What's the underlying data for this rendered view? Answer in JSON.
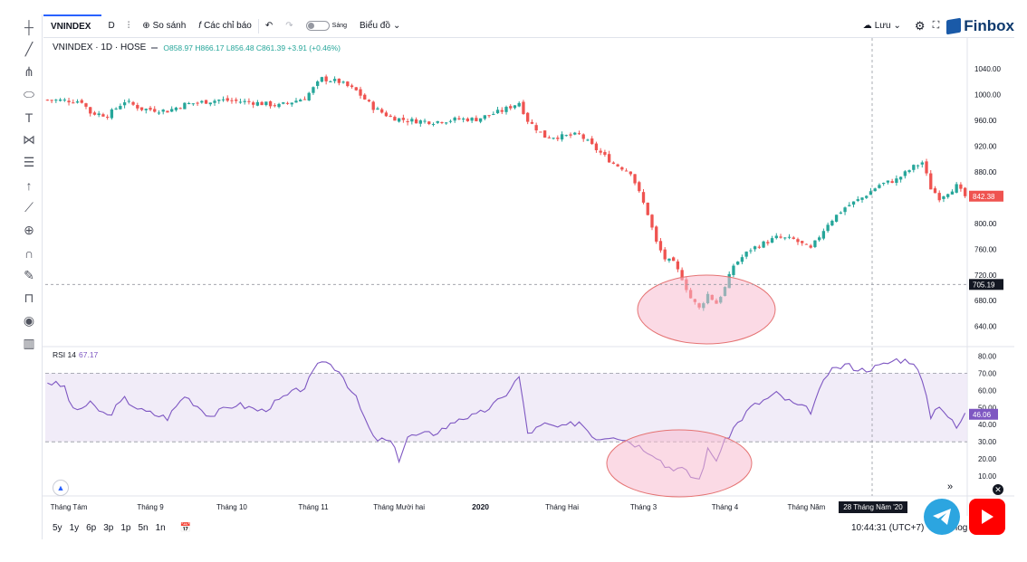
{
  "toolbar": {
    "symbol": "VNINDEX",
    "interval": "D",
    "compare_label": "So sánh",
    "indicators_label": "Các chỉ báo",
    "theme_label": "Sáng",
    "chart_type_label": "Biểu đồ",
    "save_label": "Lưu",
    "brand": "Finbox"
  },
  "legend": {
    "title": "VNINDEX · 1D · HOSE",
    "ohlc": "O858.97 H866.17 L856.48 C861.39 +3.91 (+0.46%)",
    "rsi_label": "RSI 14",
    "rsi_value": "67.17"
  },
  "bottombar": {
    "ranges": [
      "5y",
      "1y",
      "6p",
      "3p",
      "1p",
      "5n",
      "1n"
    ],
    "clock": "10:44:31 (UTC+7)",
    "log_label": "log"
  },
  "colors": {
    "up": "#26a69a",
    "down": "#ef5350",
    "rsi_line": "#7e57c2",
    "rsi_band": "#ede7f6",
    "highlight": "#f8bbd0",
    "highlight_stroke": "#e57373"
  },
  "chart_data": {
    "type": "candlestick",
    "price_axis": {
      "ticks": [
        1040,
        1000,
        960,
        920,
        880,
        840,
        800,
        760,
        720,
        680,
        640
      ],
      "tick_labels": [
        "1040.00",
        "1000.00",
        "960.00",
        "920.00",
        "880.00",
        "840.00",
        "800.00",
        "760.00",
        "720.00",
        "680.00",
        "640.00"
      ],
      "range": [
        610,
        1060
      ],
      "last_price": "842.38",
      "crosshair_price": "705.19"
    },
    "rsi_axis": {
      "ticks": [
        80,
        70,
        60,
        50,
        40,
        30,
        20,
        10
      ],
      "tick_labels": [
        "80.00",
        "70.00",
        "60.00",
        "50.00",
        "40.00",
        "30.00",
        "20.00",
        "10.00"
      ],
      "range": [
        0,
        85
      ],
      "band": [
        30,
        70
      ],
      "last_value": "46.06"
    },
    "time_axis": {
      "labels": [
        "Tháng Tám",
        "Tháng 9",
        "Tháng 10",
        "Tháng 11",
        "Tháng Mười hai",
        "2020",
        "Tháng Hai",
        "Tháng 3",
        "Tháng 4",
        "Tháng Năm"
      ],
      "positions": [
        5,
        24,
        43,
        62,
        82,
        101,
        120,
        139,
        158,
        177
      ],
      "crosshair_label": "28 Tháng Năm '20"
    },
    "bar_count": 215,
    "close_anchors": [
      [
        0,
        992
      ],
      [
        8,
        990
      ],
      [
        10,
        972
      ],
      [
        14,
        968
      ],
      [
        18,
        990
      ],
      [
        22,
        978
      ],
      [
        28,
        975
      ],
      [
        32,
        985
      ],
      [
        40,
        992
      ],
      [
        48,
        988
      ],
      [
        54,
        983
      ],
      [
        60,
        995
      ],
      [
        64,
        1025
      ],
      [
        68,
        1020
      ],
      [
        72,
        1006
      ],
      [
        76,
        980
      ],
      [
        80,
        965
      ],
      [
        84,
        960
      ],
      [
        90,
        958
      ],
      [
        96,
        962
      ],
      [
        100,
        962
      ],
      [
        106,
        975
      ],
      [
        110,
        988
      ],
      [
        112,
        960
      ],
      [
        116,
        935
      ],
      [
        120,
        935
      ],
      [
        124,
        938
      ],
      [
        128,
        915
      ],
      [
        132,
        893
      ],
      [
        136,
        880
      ],
      [
        140,
        815
      ],
      [
        142,
        770
      ],
      [
        144,
        745
      ],
      [
        146,
        738
      ],
      [
        148,
        715
      ],
      [
        150,
        684
      ],
      [
        152,
        668
      ],
      [
        154,
        690
      ],
      [
        156,
        676
      ],
      [
        158,
        700
      ],
      [
        160,
        735
      ],
      [
        164,
        760
      ],
      [
        170,
        778
      ],
      [
        174,
        775
      ],
      [
        178,
        760
      ],
      [
        182,
        800
      ],
      [
        186,
        825
      ],
      [
        190,
        840
      ],
      [
        194,
        860
      ],
      [
        198,
        868
      ],
      [
        202,
        888
      ],
      [
        204,
        895
      ],
      [
        206,
        855
      ],
      [
        208,
        840
      ],
      [
        212,
        858
      ],
      [
        214,
        842
      ]
    ],
    "rsi_anchors": [
      [
        0,
        65
      ],
      [
        4,
        62
      ],
      [
        6,
        48
      ],
      [
        10,
        52
      ],
      [
        14,
        45
      ],
      [
        18,
        55
      ],
      [
        22,
        48
      ],
      [
        28,
        44
      ],
      [
        32,
        57
      ],
      [
        38,
        45
      ],
      [
        44,
        52
      ],
      [
        50,
        48
      ],
      [
        56,
        57
      ],
      [
        60,
        62
      ],
      [
        64,
        78
      ],
      [
        68,
        72
      ],
      [
        72,
        55
      ],
      [
        76,
        32
      ],
      [
        80,
        30
      ],
      [
        82,
        20
      ],
      [
        84,
        33
      ],
      [
        90,
        35
      ],
      [
        94,
        40
      ],
      [
        96,
        44
      ],
      [
        100,
        45
      ],
      [
        106,
        55
      ],
      [
        110,
        68
      ],
      [
        112,
        35
      ],
      [
        116,
        40
      ],
      [
        120,
        38
      ],
      [
        124,
        42
      ],
      [
        128,
        32
      ],
      [
        132,
        34
      ],
      [
        136,
        30
      ],
      [
        140,
        25
      ],
      [
        142,
        22
      ],
      [
        144,
        16
      ],
      [
        148,
        14
      ],
      [
        150,
        10
      ],
      [
        152,
        8
      ],
      [
        154,
        25
      ],
      [
        156,
        20
      ],
      [
        158,
        30
      ],
      [
        160,
        38
      ],
      [
        164,
        50
      ],
      [
        170,
        58
      ],
      [
        174,
        52
      ],
      [
        178,
        48
      ],
      [
        182,
        70
      ],
      [
        186,
        75
      ],
      [
        190,
        72
      ],
      [
        194,
        74
      ],
      [
        198,
        78
      ],
      [
        202,
        77
      ],
      [
        204,
        65
      ],
      [
        206,
        45
      ],
      [
        208,
        52
      ],
      [
        212,
        38
      ],
      [
        214,
        46
      ]
    ]
  }
}
